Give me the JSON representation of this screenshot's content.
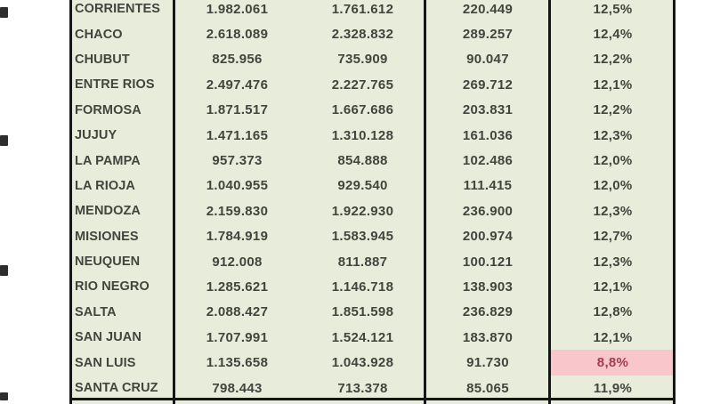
{
  "table": {
    "rows": [
      {
        "province": "CORRIENTES",
        "col1": "1.982.061",
        "col2": "1.761.612",
        "col3": "220.449",
        "pct": "12,5%",
        "highlight": false
      },
      {
        "province": "CHACO",
        "col1": "2.618.089",
        "col2": "2.328.832",
        "col3": "289.257",
        "pct": "12,4%",
        "highlight": false
      },
      {
        "province": "CHUBUT",
        "col1": "825.956",
        "col2": "735.909",
        "col3": "90.047",
        "pct": "12,2%",
        "highlight": false
      },
      {
        "province": "ENTRE RIOS",
        "col1": "2.497.476",
        "col2": "2.227.765",
        "col3": "269.712",
        "pct": "12,1%",
        "highlight": false
      },
      {
        "province": "FORMOSA",
        "col1": "1.871.517",
        "col2": "1.667.686",
        "col3": "203.831",
        "pct": "12,2%",
        "highlight": false
      },
      {
        "province": "JUJUY",
        "col1": "1.471.165",
        "col2": "1.310.128",
        "col3": "161.036",
        "pct": "12,3%",
        "highlight": false
      },
      {
        "province": "LA PAMPA",
        "col1": "957.373",
        "col2": "854.888",
        "col3": "102.486",
        "pct": "12,0%",
        "highlight": false
      },
      {
        "province": "LA RIOJA",
        "col1": "1.040.955",
        "col2": "929.540",
        "col3": "111.415",
        "pct": "12,0%",
        "highlight": false
      },
      {
        "province": "MENDOZA",
        "col1": "2.159.830",
        "col2": "1.922.930",
        "col3": "236.900",
        "pct": "12,3%",
        "highlight": false
      },
      {
        "province": "MISIONES",
        "col1": "1.784.919",
        "col2": "1.583.945",
        "col3": "200.974",
        "pct": "12,7%",
        "highlight": false
      },
      {
        "province": "NEUQUEN",
        "col1": "912.008",
        "col2": "811.887",
        "col3": "100.121",
        "pct": "12,3%",
        "highlight": false
      },
      {
        "province": "RIO NEGRO",
        "col1": "1.285.621",
        "col2": "1.146.718",
        "col3": "138.903",
        "pct": "12,1%",
        "highlight": false
      },
      {
        "province": "SALTA",
        "col1": "2.088.427",
        "col2": "1.851.598",
        "col3": "236.829",
        "pct": "12,8%",
        "highlight": false
      },
      {
        "province": "SAN JUAN",
        "col1": "1.707.991",
        "col2": "1.524.121",
        "col3": "183.870",
        "pct": "12,1%",
        "highlight": false
      },
      {
        "province": "SAN LUIS",
        "col1": "1.135.658",
        "col2": "1.043.928",
        "col3": "91.730",
        "pct": "8,8%",
        "highlight": true
      },
      {
        "province": "SANTA CRUZ",
        "col1": "798.443",
        "col2": "713.378",
        "col3": "85.065",
        "pct": "11,9%",
        "highlight": false
      }
    ]
  },
  "colors": {
    "cell_bg": "#e8ecda",
    "border": "#161616",
    "text": "#44443f",
    "highlight_bg": "#f9c6cc",
    "highlight_text": "#a23c50"
  }
}
